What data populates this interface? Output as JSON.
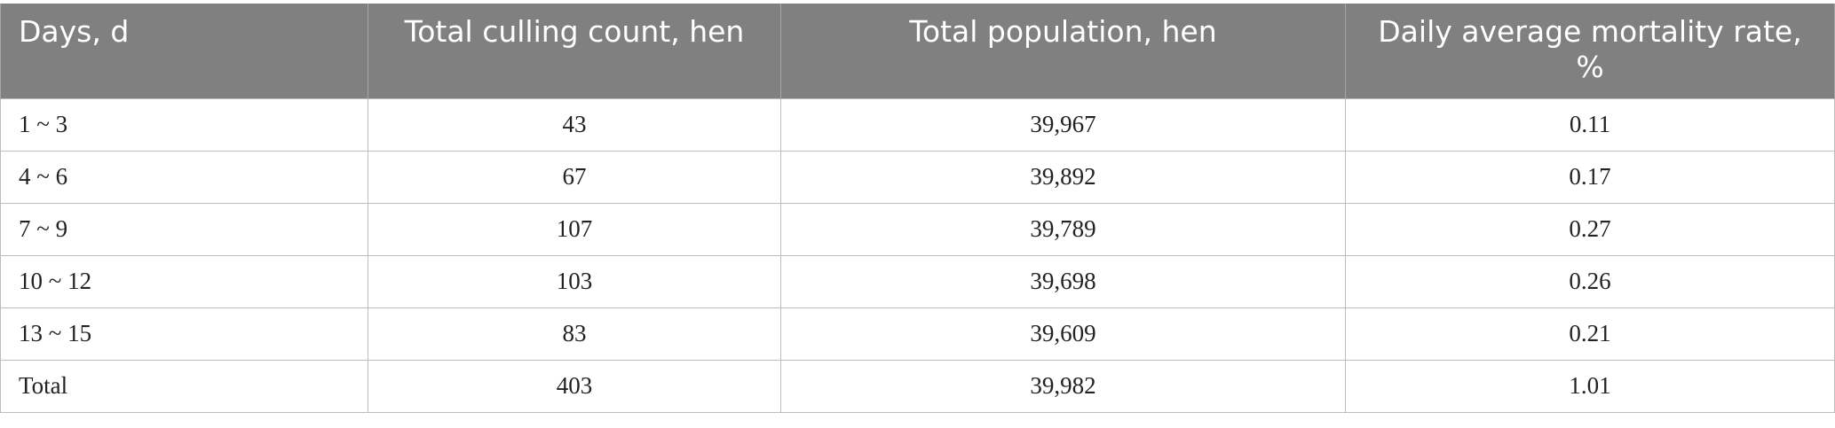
{
  "table": {
    "headers": [
      "Days, d",
      "Total culling count, hen",
      "Total population, hen",
      "Daily average mortality rate, %"
    ],
    "rows": [
      [
        "1 ~ 3",
        "43",
        "39,967",
        "0.11"
      ],
      [
        "4 ~ 6",
        "67",
        "39,892",
        "0.17"
      ],
      [
        "7 ~ 9",
        "107",
        "39,789",
        "0.27"
      ],
      [
        "10 ~ 12",
        "103",
        "39,698",
        "0.26"
      ],
      [
        "13 ~ 15",
        "83",
        "39,609",
        "0.21"
      ],
      [
        "Total",
        "403",
        "39,982",
        "1.01"
      ]
    ]
  }
}
